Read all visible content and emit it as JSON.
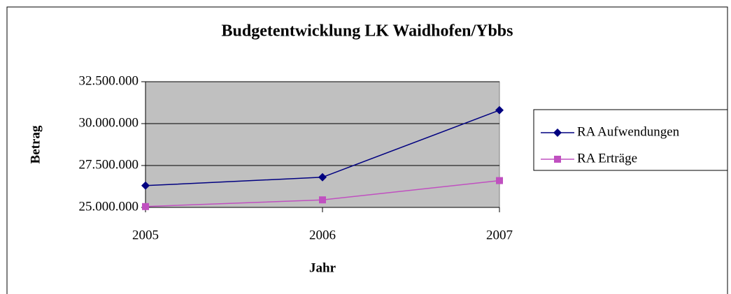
{
  "chart_data": {
    "type": "line",
    "title": "Budgetentwicklung LK Waidhofen/Ybbs",
    "xlabel": "Jahr",
    "ylabel": "Betrag",
    "categories": [
      "2005",
      "2006",
      "2007"
    ],
    "series": [
      {
        "name": "RA Aufwendungen",
        "color": "#000080",
        "marker": "diamond",
        "values": [
          26300000,
          26800000,
          30800000
        ]
      },
      {
        "name": "RA Erträge",
        "color": "#c050c0",
        "marker": "square",
        "values": [
          25050000,
          25450000,
          26600000
        ]
      }
    ],
    "ylim": [
      25000000,
      32500000
    ],
    "yticks": [
      {
        "value": 25000000,
        "label": "25.000.000"
      },
      {
        "value": 27500000,
        "label": "27.500.000"
      },
      {
        "value": 30000000,
        "label": "30.000.000"
      },
      {
        "value": 32500000,
        "label": "32.500.000"
      }
    ],
    "grid": true,
    "legend": "right"
  }
}
